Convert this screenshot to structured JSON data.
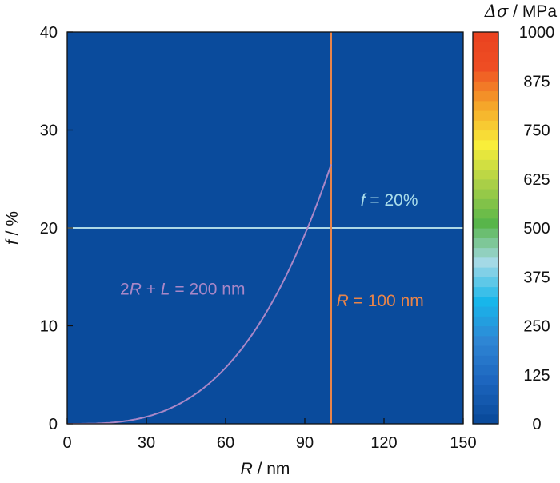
{
  "chart_data": {
    "type": "heatmap",
    "title": "",
    "x_axis": {
      "label_var": "R",
      "label_unit": " / nm",
      "range": [
        0,
        150
      ],
      "ticks": [
        0,
        30,
        60,
        90,
        120,
        150
      ],
      "tick_labels": [
        "0",
        "30",
        "60",
        "90",
        "120",
        "150"
      ]
    },
    "y_axis": {
      "label_var": "f",
      "label_unit": " / %",
      "range": [
        0,
        40
      ],
      "ticks": [
        0,
        10,
        20,
        30,
        40
      ],
      "tick_labels": [
        "0",
        "10",
        "20",
        "30",
        "40"
      ]
    },
    "colorbar": {
      "label_sym": "Δσ",
      "label_unit": " / MPa",
      "range": [
        0,
        1000
      ],
      "ticks": [
        0,
        125,
        250,
        375,
        500,
        625,
        750,
        875,
        1000
      ],
      "tick_labels": [
        "0",
        "125",
        "250",
        "375",
        "500",
        "625",
        "750",
        "875",
        "1000"
      ],
      "levels": 40,
      "colormap": [
        "#0a4b9c",
        "#1d66bf",
        "#2e86d4",
        "#18b6ea",
        "#a4d9e6",
        "#58b54a",
        "#a9cf47",
        "#f9ee3a",
        "#f5a62a",
        "#ee4d23",
        "#e8401f"
      ]
    },
    "field_model": "Delta_sigma proportional to sqrt(f) / R, saturating at 1000 MPa",
    "field_constant_mpa_nm": 1880,
    "lines": [
      {
        "name": "f = 20%",
        "kind": "horizontal",
        "y": 20,
        "color": "#add8e6"
      },
      {
        "name": "R = 100 nm",
        "kind": "vertical",
        "x": 100,
        "y_range": [
          0,
          40
        ],
        "color": "#e8844a"
      },
      {
        "name": "2R + L = 200 nm",
        "kind": "curve",
        "x_range": [
          0,
          100
        ],
        "y_at_x100": 26.5,
        "color": "#a987c7"
      }
    ],
    "annotations": [
      {
        "id": "f20",
        "parts": [
          [
            "f",
            "italic"
          ],
          [
            " = 20%",
            "normal"
          ]
        ],
        "x": 122,
        "y": 22.3,
        "anchor": "middle",
        "color": "#a9dcea"
      },
      {
        "id": "r100",
        "parts": [
          [
            "R",
            "italic"
          ],
          [
            " = 100 nm",
            "normal"
          ]
        ],
        "x": 102,
        "y": 12,
        "anchor": "start",
        "color": "#e8844a"
      },
      {
        "id": "curve",
        "parts": [
          [
            "2",
            "normal"
          ],
          [
            "R",
            "italic"
          ],
          [
            " + ",
            "normal"
          ],
          [
            "L",
            "italic"
          ],
          [
            " = 200 nm",
            "normal"
          ]
        ],
        "x": 20,
        "y": 13.2,
        "anchor": "start",
        "color": "#a987c7"
      }
    ]
  }
}
